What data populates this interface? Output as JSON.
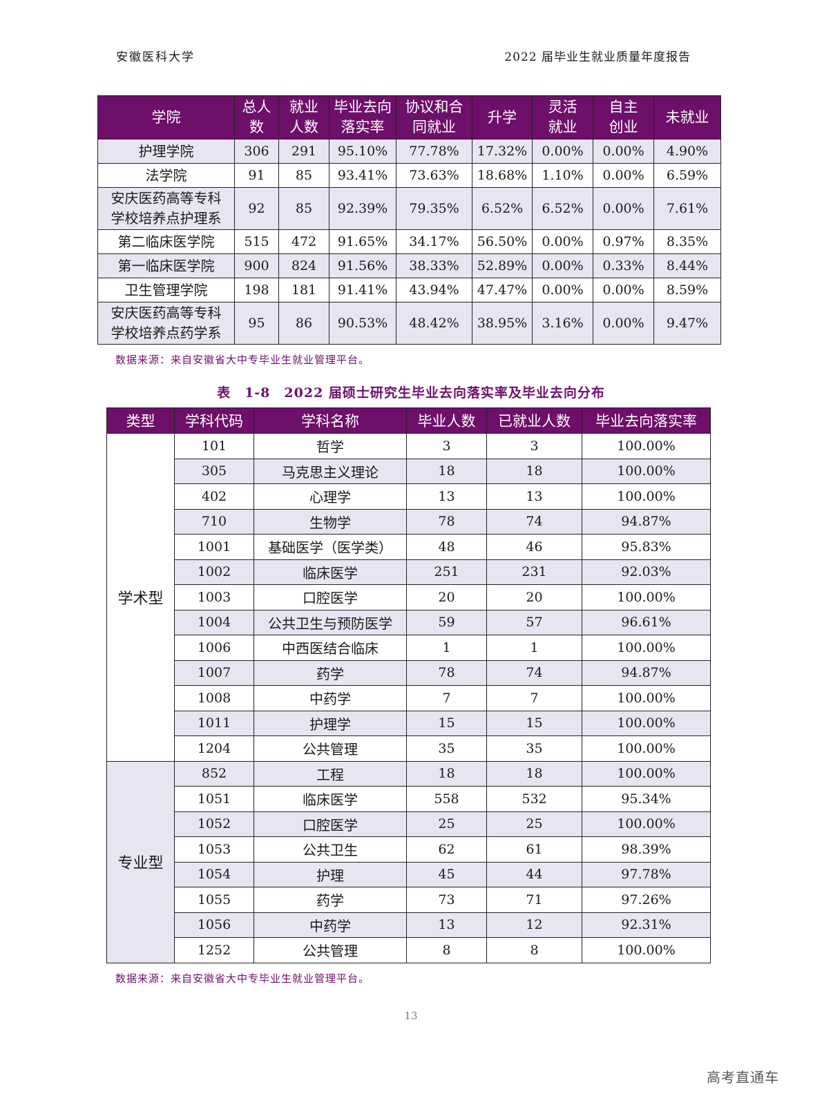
{
  "header": {
    "left": "安徽医科大学",
    "right": "2022 届毕业生就业质量年度报告"
  },
  "table1": {
    "headers": [
      [
        "学院"
      ],
      [
        "总人",
        "数"
      ],
      [
        "就业",
        "人数"
      ],
      [
        "毕业去向",
        "落实率"
      ],
      [
        "协议和合",
        "同就业"
      ],
      [
        "升学"
      ],
      [
        "灵活",
        "就业"
      ],
      [
        "自主",
        "创业"
      ],
      [
        "未就业"
      ]
    ],
    "rows": [
      {
        "name": [
          "护理学院"
        ],
        "cells": [
          "306",
          "291",
          "95.10%",
          "77.78%",
          "17.32%",
          "0.00%",
          "0.00%",
          "4.90%"
        ]
      },
      {
        "name": [
          "法学院"
        ],
        "cells": [
          "91",
          "85",
          "93.41%",
          "73.63%",
          "18.68%",
          "1.10%",
          "0.00%",
          "6.59%"
        ]
      },
      {
        "name": [
          "安庆医药高等专科",
          "学校培养点护理系"
        ],
        "cells": [
          "92",
          "85",
          "92.39%",
          "79.35%",
          "6.52%",
          "6.52%",
          "0.00%",
          "7.61%"
        ]
      },
      {
        "name": [
          "第二临床医学院"
        ],
        "cells": [
          "515",
          "472",
          "91.65%",
          "34.17%",
          "56.50%",
          "0.00%",
          "0.97%",
          "8.35%"
        ]
      },
      {
        "name": [
          "第一临床医学院"
        ],
        "cells": [
          "900",
          "824",
          "91.56%",
          "38.33%",
          "52.89%",
          "0.00%",
          "0.33%",
          "8.44%"
        ]
      },
      {
        "name": [
          "卫生管理学院"
        ],
        "cells": [
          "198",
          "181",
          "91.41%",
          "43.94%",
          "47.47%",
          "0.00%",
          "0.00%",
          "8.59%"
        ]
      },
      {
        "name": [
          "安庆医药高等专科",
          "学校培养点药学系"
        ],
        "cells": [
          "95",
          "86",
          "90.53%",
          "48.42%",
          "38.95%",
          "3.16%",
          "0.00%",
          "9.47%"
        ]
      }
    ],
    "source": "数据来源：来自安徽省大中专毕业生就业管理平台。"
  },
  "table2": {
    "caption": "表　1-8　2022 届硕士研究生毕业去向落实率及毕业去向分布",
    "headers": [
      "类型",
      "学科代码",
      "学科名称",
      "毕业人数",
      "已就业人数",
      "毕业去向落实率"
    ],
    "groups": [
      {
        "type": "学术型",
        "rows": [
          [
            "101",
            "哲学",
            "3",
            "3",
            "100.00%"
          ],
          [
            "305",
            "马克思主义理论",
            "18",
            "18",
            "100.00%"
          ],
          [
            "402",
            "心理学",
            "13",
            "13",
            "100.00%"
          ],
          [
            "710",
            "生物学",
            "78",
            "74",
            "94.87%"
          ],
          [
            "1001",
            "基础医学（医学类）",
            "48",
            "46",
            "95.83%"
          ],
          [
            "1002",
            "临床医学",
            "251",
            "231",
            "92.03%"
          ],
          [
            "1003",
            "口腔医学",
            "20",
            "20",
            "100.00%"
          ],
          [
            "1004",
            "公共卫生与预防医学",
            "59",
            "57",
            "96.61%"
          ],
          [
            "1006",
            "中西医结合临床",
            "1",
            "1",
            "100.00%"
          ],
          [
            "1007",
            "药学",
            "78",
            "74",
            "94.87%"
          ],
          [
            "1008",
            "中药学",
            "7",
            "7",
            "100.00%"
          ],
          [
            "1011",
            "护理学",
            "15",
            "15",
            "100.00%"
          ],
          [
            "1204",
            "公共管理",
            "35",
            "35",
            "100.00%"
          ]
        ]
      },
      {
        "type": "专业型",
        "rows": [
          [
            "852",
            "工程",
            "18",
            "18",
            "100.00%"
          ],
          [
            "1051",
            "临床医学",
            "558",
            "532",
            "95.34%"
          ],
          [
            "1052",
            "口腔医学",
            "25",
            "25",
            "100.00%"
          ],
          [
            "1053",
            "公共卫生",
            "62",
            "61",
            "98.39%"
          ],
          [
            "1054",
            "护理",
            "45",
            "44",
            "97.78%"
          ],
          [
            "1055",
            "药学",
            "73",
            "71",
            "97.26%"
          ],
          [
            "1056",
            "中药学",
            "13",
            "12",
            "92.31%"
          ],
          [
            "1252",
            "公共管理",
            "8",
            "8",
            "100.00%"
          ]
        ]
      }
    ],
    "source": "数据来源：来自安徽省大中专毕业生就业管理平台。"
  },
  "page_number": "13",
  "watermark": "高考直通车",
  "colors": {
    "header_bg": "#6e0f6a",
    "row_shade": "#e8e4f1",
    "caption": "#6e0f6a"
  }
}
